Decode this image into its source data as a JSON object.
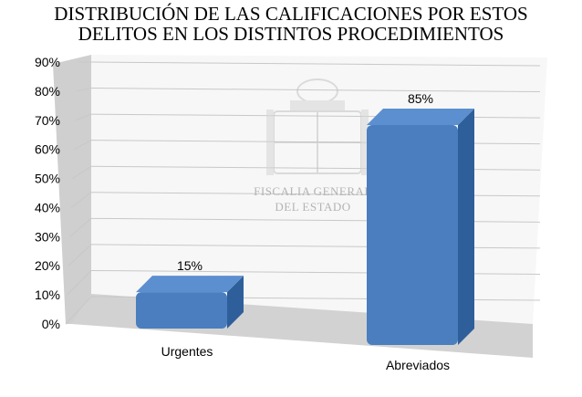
{
  "chart_data": {
    "type": "bar",
    "title_lines": [
      "DISTRIBUCIÓN DE LAS CALIFICACIONES POR ESTOS",
      "DELITOS EN LOS DISTINTOS PROCEDIMIENTOS"
    ],
    "categories": [
      "Urgentes",
      "Abreviados"
    ],
    "values": [
      15,
      85
    ],
    "data_labels": [
      "15%",
      "85%"
    ],
    "ylim": [
      0,
      90
    ],
    "y_ticks": [
      "0%",
      "10%",
      "20%",
      "30%",
      "40%",
      "50%",
      "60%",
      "70%",
      "80%",
      "90%"
    ],
    "grid": true,
    "three_d": true,
    "bar_color": "#4a7ebf",
    "bar_top_color": "#5b8fd0",
    "bar_side_color": "#2f5f9a"
  },
  "watermark": {
    "line1": "FISCALIA GENERAL",
    "line2": "DEL ESTADO"
  }
}
